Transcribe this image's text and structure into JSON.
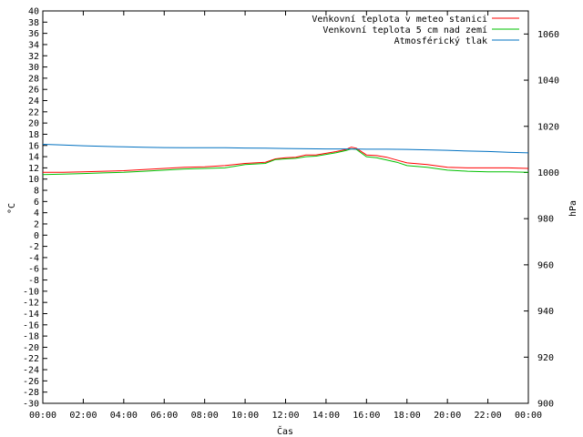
{
  "chart_data": {
    "type": "line",
    "xlabel": "Čas",
    "ylabel_left": "°C",
    "ylabel_right": "hPa",
    "x_ticks": [
      "00:00",
      "02:00",
      "04:00",
      "06:00",
      "08:00",
      "10:00",
      "12:00",
      "14:00",
      "16:00",
      "18:00",
      "20:00",
      "22:00",
      "00:00"
    ],
    "x_range_hours": [
      0,
      24
    ],
    "ylim_left": [
      -30,
      40
    ],
    "y_ticks_left": [
      40,
      38,
      36,
      34,
      32,
      30,
      28,
      26,
      24,
      22,
      20,
      18,
      16,
      14,
      12,
      10,
      8,
      6,
      4,
      2,
      0,
      -2,
      -4,
      -6,
      -8,
      -10,
      -12,
      -14,
      -16,
      -18,
      -20,
      -22,
      -24,
      -26,
      -28,
      -30
    ],
    "ylim_right": [
      900,
      1070
    ],
    "y_ticks_right": [
      1060,
      1040,
      1020,
      1000,
      980,
      960,
      940,
      920,
      900
    ],
    "grid": false,
    "legend_position": "top-right",
    "series": [
      {
        "name": "Venkovní teplota v meteo stanici",
        "axis": "left",
        "color": "#ff0000",
        "x": [
          0,
          1,
          2,
          3,
          4,
          5,
          6,
          7,
          8,
          9,
          10,
          11,
          11.5,
          12,
          12.5,
          13,
          13.5,
          14,
          14.5,
          15,
          15.25,
          15.5,
          16,
          16.5,
          17,
          17.5,
          18,
          19,
          20,
          21,
          22,
          23,
          24
        ],
        "y": [
          11.2,
          11.2,
          11.3,
          11.4,
          11.5,
          11.7,
          11.9,
          12.1,
          12.2,
          12.4,
          12.8,
          13.0,
          13.6,
          13.8,
          13.9,
          14.3,
          14.3,
          14.6,
          14.9,
          15.3,
          15.7,
          15.5,
          14.3,
          14.2,
          13.9,
          13.4,
          12.9,
          12.6,
          12.1,
          12.0,
          12.0,
          12.0,
          11.9
        ]
      },
      {
        "name": "Venkovní teplota 5 cm nad zemí",
        "axis": "left",
        "color": "#00c000",
        "x": [
          0,
          1,
          2,
          3,
          4,
          5,
          6,
          7,
          8,
          9,
          10,
          11,
          11.5,
          12,
          12.5,
          13,
          13.5,
          14,
          14.5,
          15,
          15.25,
          15.5,
          16,
          16.5,
          17,
          17.5,
          18,
          19,
          20,
          21,
          22,
          23,
          24
        ],
        "y": [
          10.8,
          10.9,
          11.0,
          11.1,
          11.2,
          11.4,
          11.6,
          11.8,
          11.9,
          12.0,
          12.6,
          12.8,
          13.5,
          13.6,
          13.7,
          14.0,
          14.1,
          14.4,
          14.7,
          15.1,
          15.4,
          15.3,
          14.0,
          13.8,
          13.4,
          13.0,
          12.4,
          12.1,
          11.6,
          11.4,
          11.3,
          11.3,
          11.2
        ]
      },
      {
        "name": "Atmosférický tlak",
        "axis": "right",
        "color": "#0070c0",
        "x": [
          0,
          1,
          2,
          3,
          4,
          5,
          6,
          7,
          8,
          9,
          10,
          11,
          12,
          13,
          14,
          15,
          16,
          17,
          18,
          19,
          20,
          21,
          22,
          23,
          24
        ],
        "y": [
          1012.2,
          1011.9,
          1011.6,
          1011.3,
          1011.1,
          1010.9,
          1010.8,
          1010.7,
          1010.7,
          1010.7,
          1010.6,
          1010.5,
          1010.4,
          1010.3,
          1010.2,
          1010.2,
          1010.1,
          1010.1,
          1010.0,
          1009.8,
          1009.6,
          1009.3,
          1009.1,
          1008.8,
          1008.5
        ]
      }
    ]
  }
}
